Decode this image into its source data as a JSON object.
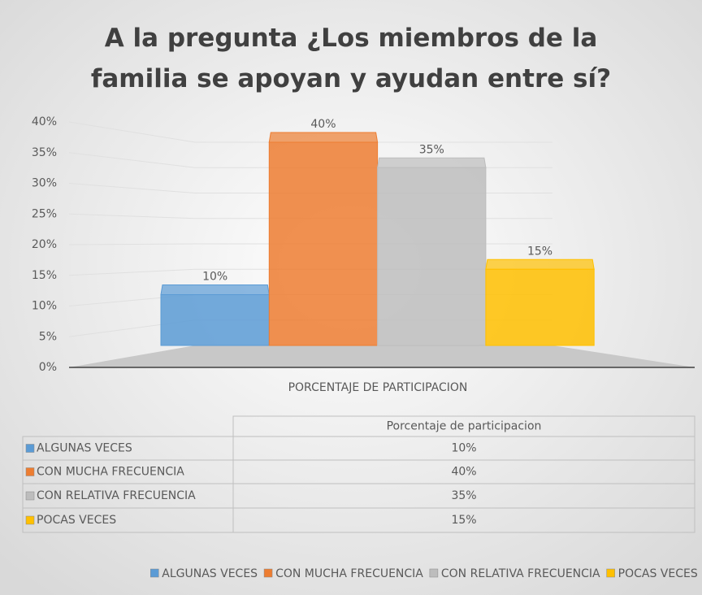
{
  "chart_data": {
    "type": "bar3d",
    "title": "A la pregunta ¿Los miembros de la familia se apoyan y ayudan entre sí?",
    "categories": [
      "PORCENTAJE DE PARTICIPACION"
    ],
    "table_header": "Porcentaje de participacion",
    "series": [
      {
        "name": "ALGUNAS VECES",
        "color": "#5b9bd5",
        "values": [
          10
        ],
        "value_labels": [
          "10%"
        ]
      },
      {
        "name": "CON MUCHA FRECUENCIA",
        "color": "#ed7d31",
        "values": [
          40
        ],
        "value_labels": [
          "40%"
        ]
      },
      {
        "name": "CON RELATIVA FRECUENCIA",
        "color": "#bdbdbd",
        "values": [
          35
        ],
        "value_labels": [
          "35%"
        ]
      },
      {
        "name": "POCAS VECES",
        "color": "#ffc000",
        "values": [
          15
        ],
        "value_labels": [
          "15%"
        ]
      }
    ],
    "ylim": [
      0,
      40
    ],
    "yticks": [
      {
        "value": 0,
        "label": "0%"
      },
      {
        "value": 5,
        "label": "5%"
      },
      {
        "value": 10,
        "label": "10%"
      },
      {
        "value": 15,
        "label": "15%"
      },
      {
        "value": 20,
        "label": "20%"
      },
      {
        "value": 25,
        "label": "25%"
      },
      {
        "value": 30,
        "label": "30%"
      },
      {
        "value": 35,
        "label": "35%"
      },
      {
        "value": 40,
        "label": "40%"
      }
    ],
    "grid": true
  }
}
